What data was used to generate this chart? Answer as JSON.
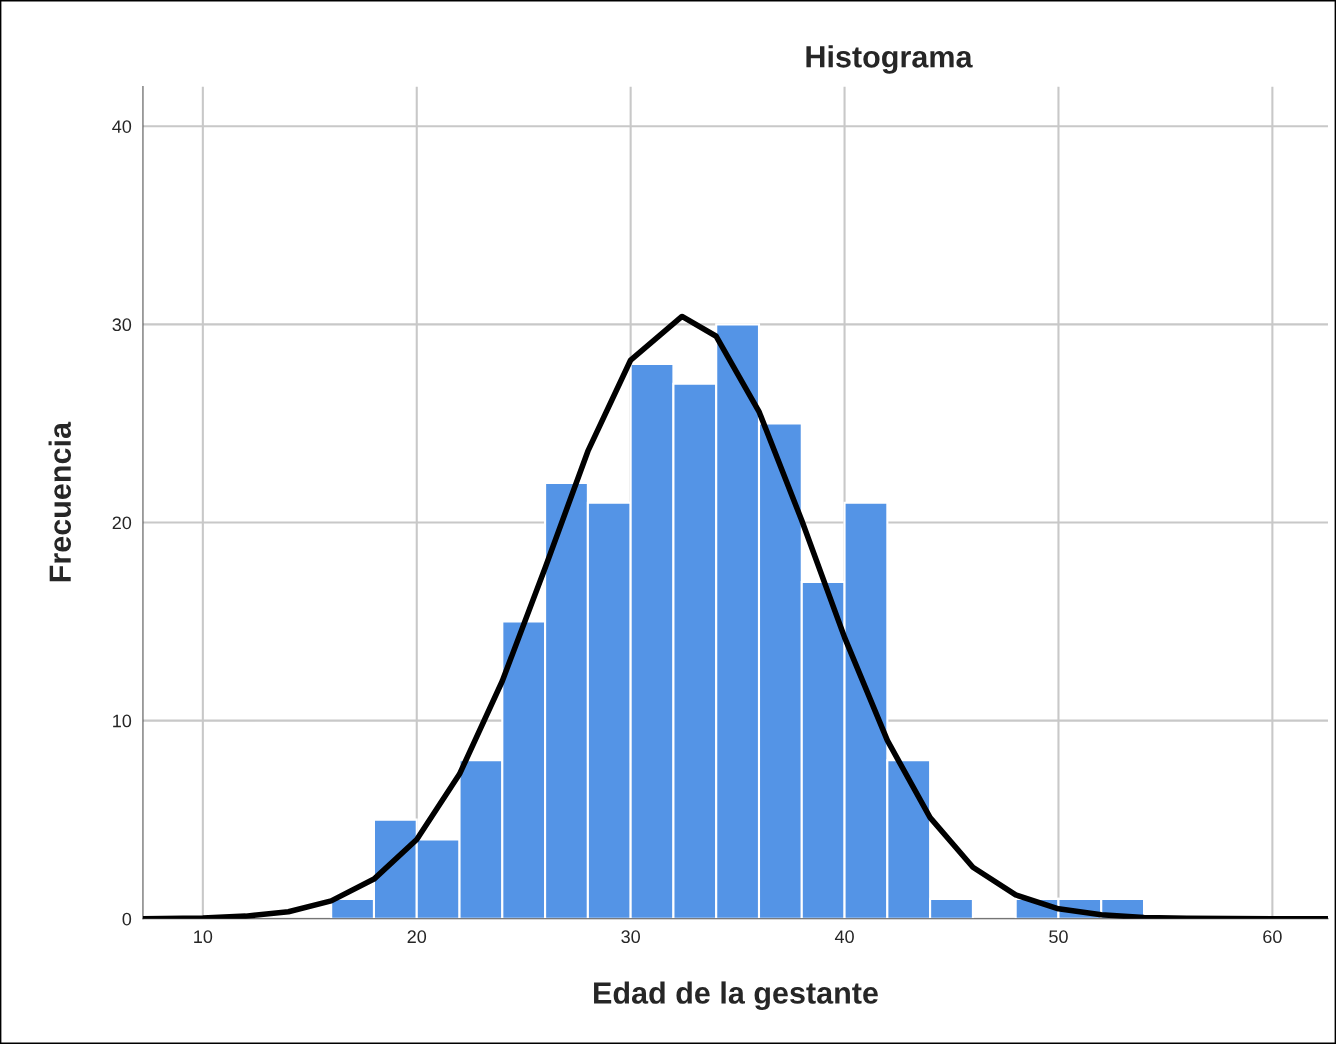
{
  "chart_data": {
    "type": "histogram",
    "title": "Histograma",
    "xlabel": "Edad de la gestante",
    "ylabel": "Frecuencia",
    "bins": [
      16,
      18,
      20,
      22,
      24,
      26,
      28,
      30,
      32,
      34,
      36,
      38,
      40,
      42,
      44,
      46,
      48,
      50,
      52,
      54
    ],
    "values": [
      1,
      5,
      4,
      8,
      15,
      22,
      21,
      28,
      27,
      30,
      25,
      17,
      21,
      8,
      1,
      0,
      1,
      1,
      1
    ],
    "color": "#5494e6",
    "series": [
      {
        "type": "line",
        "color": "#000000",
        "x": [
          7.2,
          10,
          12,
          14,
          16,
          18,
          20,
          22,
          24,
          26,
          28,
          30,
          32.4,
          34,
          36,
          38,
          40,
          42,
          44,
          46,
          48,
          50,
          52,
          54,
          56,
          60,
          62.6
        ],
        "values": [
          0,
          0.04,
          0.13,
          0.35,
          0.9,
          2.0,
          4.0,
          7.3,
          12.0,
          17.7,
          23.6,
          28.2,
          30.4,
          29.4,
          25.6,
          20.1,
          14.2,
          9.0,
          5.1,
          2.6,
          1.2,
          0.5,
          0.2,
          0.06,
          0.02,
          0,
          0
        ]
      }
    ],
    "xlim": [
      7.2,
      62.6
    ],
    "ylim": [
      0,
      42
    ],
    "xticks": [
      10,
      20,
      30,
      40,
      50,
      60
    ],
    "yticks": [
      0,
      10,
      20,
      30,
      40
    ],
    "grid": true
  }
}
